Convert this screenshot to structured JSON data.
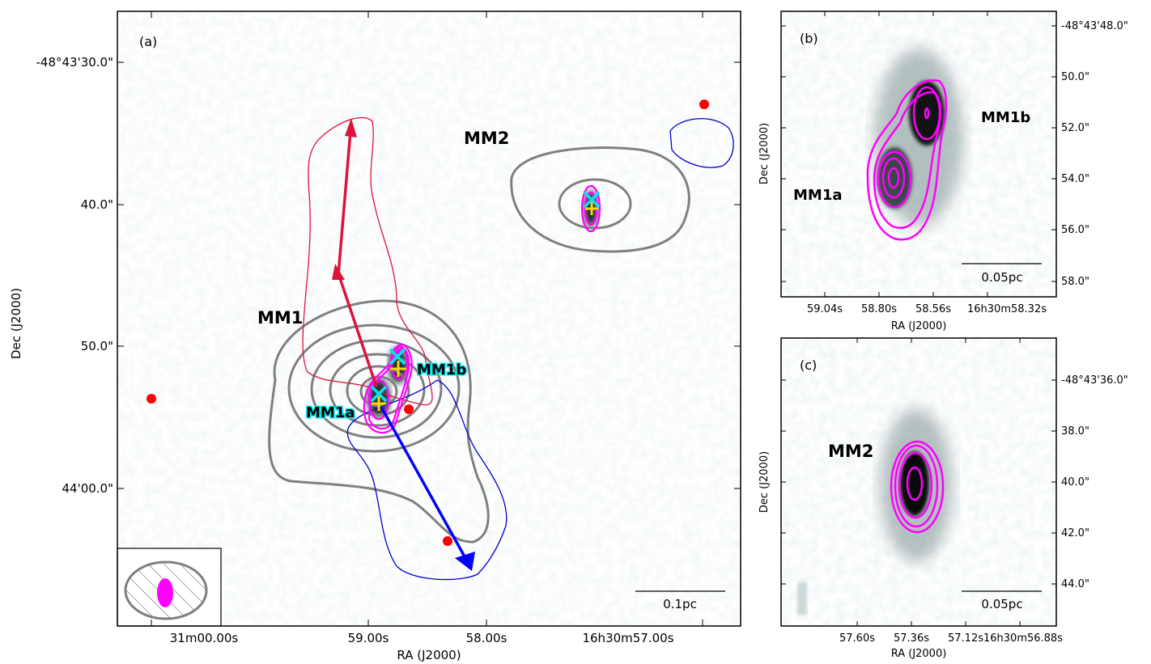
{
  "chart_data": [
    {
      "panel": "(a)",
      "type": "image-contour",
      "xlabel": "RA (J2000)",
      "ylabel": "Dec (J2000)",
      "x_ticks": [
        "31m00.00s",
        "59.00s",
        "58.00s",
        "16h30m57.00s"
      ],
      "y_ticks": [
        "-48°43'30.0\"",
        "40.0\"",
        "50.0\"",
        "44'00.0\""
      ],
      "sources": [
        {
          "label": "MM1"
        },
        {
          "label": "MM1a"
        },
        {
          "label": "MM1b"
        },
        {
          "label": "MM2"
        }
      ],
      "scalebar": "0.1pc",
      "outflow_colors": {
        "red_lobe": "#dc143c",
        "blue_lobe": "#0000ff"
      },
      "contour_colors": {
        "single_dish": "#808080",
        "interferometer": "#ff00ff",
        "red_lobe_contour": "#dc143c",
        "blue_lobe_contour": "#0000cd"
      },
      "marker_colors": {
        "x_marker": "#00e5ee",
        "plus_marker": "#ffd700",
        "red_dots": "#ff0000"
      }
    },
    {
      "panel": "(b)",
      "type": "image-contour",
      "xlabel": "RA (J2000)",
      "ylabel": "Dec (J2000)",
      "x_ticks": [
        "59.04s",
        "58.80s",
        "58.56s",
        "16h30m58.32s"
      ],
      "y_ticks": [
        "-48°43'48.0\"",
        "50.0\"",
        "52.0\"",
        "54.0\"",
        "56.0\"",
        "58.0\""
      ],
      "sources": [
        {
          "label": "MM1a"
        },
        {
          "label": "MM1b"
        }
      ],
      "scalebar": "0.05pc"
    },
    {
      "panel": "(c)",
      "type": "image-contour",
      "xlabel": "RA (J2000)",
      "ylabel": "Dec (J2000)",
      "x_ticks": [
        "57.60s",
        "57.36s",
        "57.12s",
        "16h30m56.88s"
      ],
      "y_ticks": [
        "-48°43'36.0\"",
        "38.0\"",
        "40.0\"",
        "42.0\"",
        "44.0\""
      ],
      "sources": [
        {
          "label": "MM2"
        }
      ],
      "scalebar": "0.05pc"
    }
  ]
}
